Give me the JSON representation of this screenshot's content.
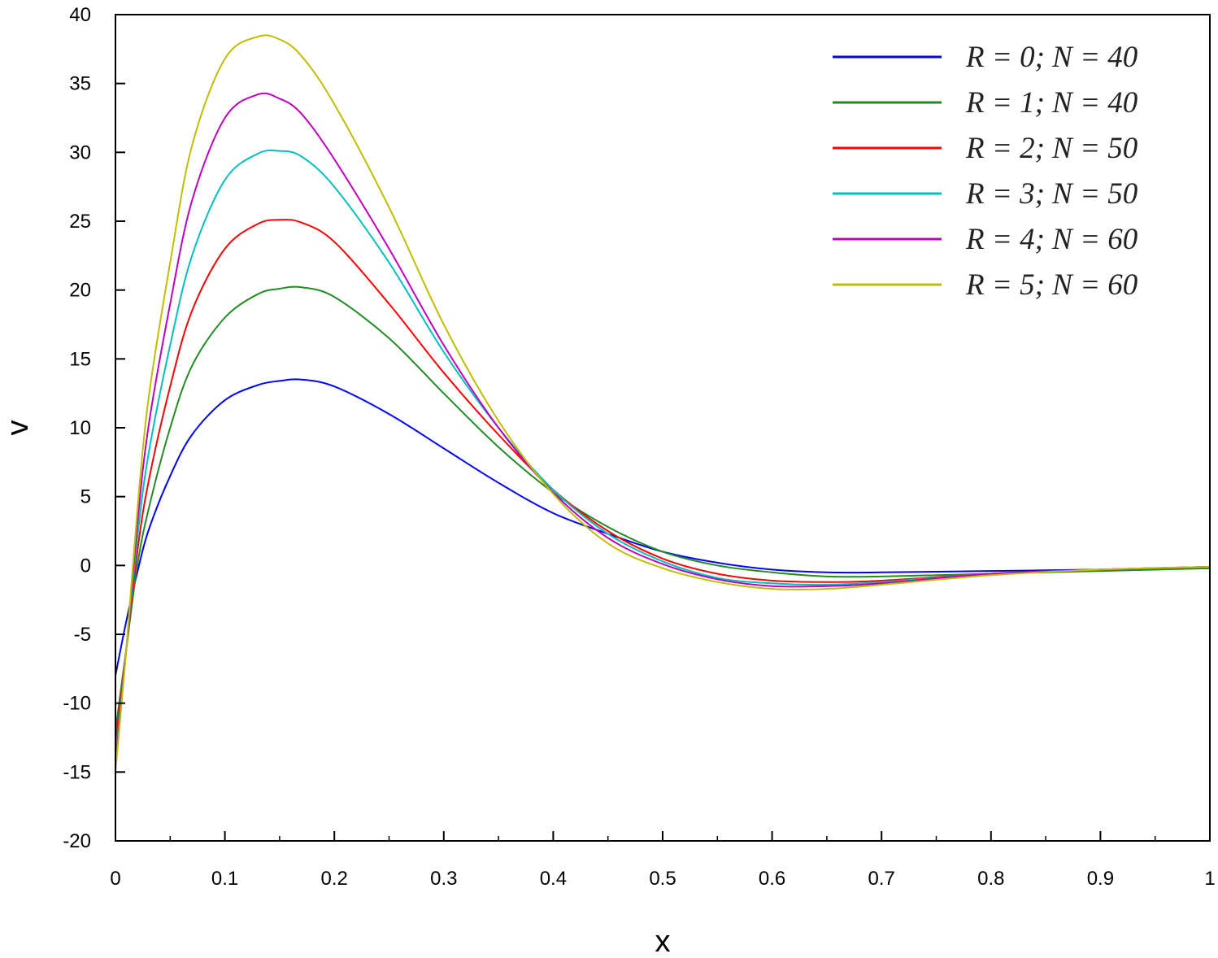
{
  "chart_data": {
    "type": "line",
    "xlabel": "x",
    "ylabel": "v",
    "xlim": [
      0,
      1
    ],
    "ylim": [
      -20,
      40
    ],
    "x_ticks": [
      "0",
      "0.1",
      "0.2",
      "0.3",
      "0.4",
      "0.5",
      "0.6",
      "0.7",
      "0.8",
      "0.9",
      "1"
    ],
    "y_ticks": [
      "40",
      "35",
      "30",
      "25",
      "20",
      "15",
      "10",
      "5",
      "0",
      "-5",
      "-10",
      "-15",
      "-20"
    ],
    "grid": false,
    "legend_position": "top-right",
    "series": [
      {
        "name": "R = 0; N = 40",
        "color": "#0000ff",
        "x": [
          0,
          0.01,
          0.02,
          0.03,
          0.05,
          0.07,
          0.1,
          0.13,
          0.15,
          0.17,
          0.2,
          0.25,
          0.3,
          0.35,
          0.4,
          0.45,
          0.5,
          0.55,
          0.6,
          0.65,
          0.7,
          0.8,
          0.9,
          1.0
        ],
        "y": [
          -8,
          -4,
          -0.5,
          2.5,
          6.5,
          9.5,
          12.0,
          13.1,
          13.4,
          13.5,
          13.0,
          11.0,
          8.5,
          6.0,
          3.8,
          2.3,
          1.0,
          0.2,
          -0.3,
          -0.5,
          -0.5,
          -0.4,
          -0.3,
          -0.2
        ]
      },
      {
        "name": "R = 1; N = 40",
        "color": "#228b22",
        "x": [
          0,
          0.01,
          0.02,
          0.03,
          0.05,
          0.07,
          0.1,
          0.13,
          0.15,
          0.17,
          0.2,
          0.25,
          0.3,
          0.35,
          0.4,
          0.45,
          0.5,
          0.55,
          0.6,
          0.65,
          0.7,
          0.8,
          0.9,
          1.0
        ],
        "y": [
          -12,
          -6,
          0,
          4,
          10,
          14.5,
          18.0,
          19.7,
          20.1,
          20.2,
          19.5,
          16.5,
          12.5,
          8.6,
          5.3,
          2.8,
          1.0,
          0,
          -0.5,
          -0.8,
          -0.8,
          -0.6,
          -0.4,
          -0.2
        ]
      },
      {
        "name": "R = 2; N = 50",
        "color": "#ff0000",
        "x": [
          0,
          0.01,
          0.02,
          0.03,
          0.05,
          0.07,
          0.1,
          0.13,
          0.15,
          0.17,
          0.2,
          0.25,
          0.3,
          0.35,
          0.4,
          0.45,
          0.5,
          0.55,
          0.6,
          0.65,
          0.7,
          0.8,
          0.9,
          1.0
        ],
        "y": [
          -13,
          -6,
          1,
          6,
          13,
          18.5,
          23.0,
          24.8,
          25.1,
          24.9,
          23.5,
          19.0,
          14.0,
          9.5,
          5.5,
          2.5,
          0.5,
          -0.6,
          -1.1,
          -1.2,
          -1.1,
          -0.6,
          -0.3,
          -0.1
        ]
      },
      {
        "name": "R = 3; N = 50",
        "color": "#00bfbf",
        "x": [
          0,
          0.01,
          0.02,
          0.03,
          0.05,
          0.07,
          0.1,
          0.13,
          0.15,
          0.17,
          0.2,
          0.25,
          0.3,
          0.35,
          0.4,
          0.45,
          0.5,
          0.55,
          0.6,
          0.65,
          0.7,
          0.8,
          0.9,
          1.0
        ],
        "y": [
          -14,
          -6,
          2,
          8,
          16,
          22.5,
          28.0,
          29.9,
          30.1,
          29.7,
          27.5,
          22.0,
          15.5,
          10.0,
          5.5,
          2.3,
          0.3,
          -0.9,
          -1.3,
          -1.4,
          -1.2,
          -0.6,
          -0.3,
          -0.1
        ]
      },
      {
        "name": "R = 4; N = 60",
        "color": "#bf00bf",
        "x": [
          0,
          0.01,
          0.02,
          0.03,
          0.05,
          0.07,
          0.1,
          0.13,
          0.15,
          0.17,
          0.2,
          0.25,
          0.3,
          0.35,
          0.4,
          0.45,
          0.5,
          0.55,
          0.6,
          0.65,
          0.7,
          0.8,
          0.9,
          1.0
        ],
        "y": [
          -14.5,
          -6,
          3,
          10,
          19,
          26.5,
          32.5,
          34.2,
          33.9,
          32.8,
          29.5,
          23.0,
          16.0,
          10.0,
          5.3,
          2.0,
          0.1,
          -1.0,
          -1.5,
          -1.5,
          -1.3,
          -0.6,
          -0.3,
          -0.1
        ]
      },
      {
        "name": "R = 5; N = 60",
        "color": "#bfbf00",
        "x": [
          0,
          0.01,
          0.02,
          0.03,
          0.05,
          0.07,
          0.1,
          0.13,
          0.15,
          0.17,
          0.2,
          0.25,
          0.3,
          0.35,
          0.4,
          0.45,
          0.5,
          0.55,
          0.6,
          0.65,
          0.7,
          0.8,
          0.9,
          1.0
        ],
        "y": [
          -15,
          -6,
          4,
          12,
          22,
          30.5,
          36.8,
          38.4,
          38.2,
          37.0,
          33.5,
          26.0,
          17.5,
          10.5,
          5.2,
          1.6,
          -0.2,
          -1.2,
          -1.7,
          -1.7,
          -1.4,
          -0.7,
          -0.3,
          -0.1
        ]
      }
    ]
  }
}
